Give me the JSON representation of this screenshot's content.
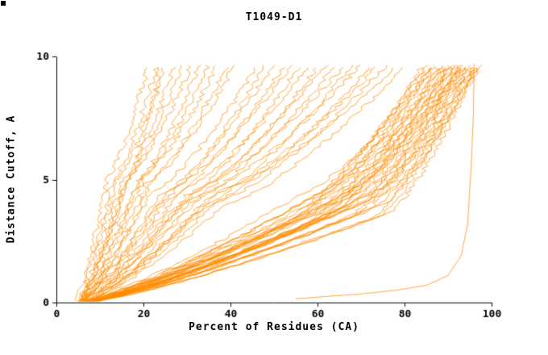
{
  "page": {
    "background": "#ffffff"
  },
  "chart_data": {
    "type": "line",
    "title": "T1049-D1",
    "xlabel": "Percent of Residues (CA)",
    "ylabel": "Distance Cutoff, A",
    "xlim": [
      0,
      100
    ],
    "ylim": [
      0,
      10
    ],
    "x_ticks": [
      0,
      20,
      40,
      60,
      80,
      100
    ],
    "y_ticks": [
      0,
      5,
      10
    ],
    "grid": false,
    "legend": "none",
    "line_color": "#FF8C00",
    "axis_color": "#000000",
    "y_top_reached": 9.7,
    "series_description": "Dense bundle of cumulative model-accuracy curves (percent of CA residues under each distance cutoff), one orange curve per predicted model; most curves sweep from lower-left (~5%, 0 A) diagonally right and become near-vertical around 85-98% at high cutoffs, a left fan of poorer models tops out at 20-40%, plus one low outlier curve along the bottom right.",
    "curve_format": "[x_at_y0, x_at_y_mid, y_mid, x_at_y_top]",
    "curves": [
      [
        4.5,
        12,
        5.2,
        21
      ],
      [
        4.8,
        13,
        5.0,
        23
      ],
      [
        5.0,
        14,
        5.1,
        25
      ],
      [
        5.2,
        15,
        4.9,
        27
      ],
      [
        5.5,
        16,
        5.0,
        29
      ],
      [
        5.0,
        17,
        5.2,
        31
      ],
      [
        5.3,
        18,
        4.8,
        33
      ],
      [
        5.6,
        19,
        5.0,
        35
      ],
      [
        5.8,
        20,
        5.1,
        37
      ],
      [
        6.0,
        21,
        4.9,
        39
      ],
      [
        6.2,
        22,
        5.0,
        41
      ],
      [
        5.4,
        15.5,
        4.6,
        24
      ],
      [
        5.0,
        22,
        4.5,
        46
      ],
      [
        5.2,
        24,
        4.4,
        50
      ],
      [
        5.5,
        26,
        4.6,
        54
      ],
      [
        5.8,
        28,
        4.5,
        58
      ],
      [
        6.0,
        30,
        4.4,
        62
      ],
      [
        6.2,
        32,
        4.6,
        66
      ],
      [
        6.4,
        34,
        4.5,
        70
      ],
      [
        6.6,
        36,
        4.4,
        74
      ],
      [
        6.8,
        38,
        4.6,
        78
      ],
      [
        5.1,
        23,
        4.0,
        48
      ],
      [
        5.3,
        25,
        4.1,
        52
      ],
      [
        5.6,
        27,
        3.9,
        56
      ],
      [
        5.9,
        29,
        4.0,
        60
      ],
      [
        6.1,
        31,
        4.1,
        64
      ],
      [
        6.3,
        33,
        3.9,
        68
      ],
      [
        6.5,
        35,
        4.0,
        72
      ],
      [
        6.7,
        37,
        4.1,
        76
      ],
      [
        6.9,
        39,
        4.0,
        80
      ],
      [
        5.0,
        55,
        3.5,
        84
      ],
      [
        5.2,
        58,
        3.6,
        86
      ],
      [
        5.4,
        60,
        3.4,
        88
      ],
      [
        5.6,
        62,
        3.5,
        90
      ],
      [
        5.8,
        64,
        3.6,
        91
      ],
      [
        6.0,
        66,
        3.4,
        92
      ],
      [
        6.2,
        68,
        3.5,
        93
      ],
      [
        6.4,
        70,
        3.6,
        94
      ],
      [
        6.6,
        72,
        3.4,
        95
      ],
      [
        6.8,
        74,
        3.5,
        96
      ],
      [
        7.0,
        76,
        3.6,
        97
      ],
      [
        5.1,
        56,
        4.0,
        85
      ],
      [
        5.3,
        59,
        4.1,
        87
      ],
      [
        5.5,
        61,
        3.9,
        89
      ],
      [
        5.7,
        63,
        4.0,
        90.5
      ],
      [
        5.9,
        65,
        4.1,
        91.5
      ],
      [
        6.1,
        67,
        3.9,
        92.5
      ],
      [
        6.3,
        69,
        4.0,
        93.5
      ],
      [
        6.5,
        71,
        4.1,
        94.5
      ],
      [
        6.7,
        73,
        3.9,
        95.5
      ],
      [
        6.9,
        75,
        4.0,
        96.5
      ],
      [
        5.2,
        57,
        4.5,
        86.5
      ],
      [
        5.4,
        60,
        4.4,
        88.5
      ],
      [
        5.6,
        62,
        4.6,
        90.2
      ],
      [
        5.8,
        64,
        4.5,
        91.8
      ],
      [
        6.0,
        66,
        4.4,
        92.8
      ],
      [
        6.2,
        68,
        4.6,
        93.8
      ],
      [
        6.4,
        70,
        4.5,
        94.8
      ],
      [
        6.6,
        72,
        4.4,
        95.8
      ],
      [
        6.8,
        74,
        4.6,
        96.8
      ],
      [
        7.0,
        76,
        4.5,
        97.5
      ],
      [
        5.5,
        50,
        3.0,
        85
      ],
      [
        5.7,
        52,
        3.1,
        87
      ],
      [
        5.9,
        54,
        2.9,
        89
      ],
      [
        6.1,
        56,
        3.0,
        91
      ],
      [
        6.3,
        58,
        3.1,
        93
      ]
    ],
    "outlier_curve": [
      [
        55,
        0.15
      ],
      [
        62,
        0.25
      ],
      [
        70,
        0.35
      ],
      [
        78,
        0.5
      ],
      [
        85,
        0.7
      ],
      [
        90,
        1.1
      ],
      [
        93,
        1.9
      ],
      [
        94.5,
        3.2
      ],
      [
        95.3,
        5.5
      ],
      [
        95.8,
        7.5
      ],
      [
        96,
        9.7
      ]
    ]
  }
}
